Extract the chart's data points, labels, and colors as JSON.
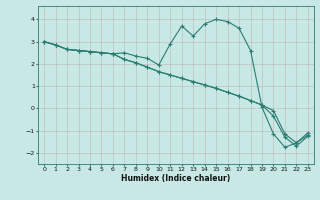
{
  "xlabel": "Humidex (Indice chaleur)",
  "xlim": [
    -0.5,
    23.5
  ],
  "ylim": [
    -2.5,
    4.6
  ],
  "xticks": [
    0,
    1,
    2,
    3,
    4,
    5,
    6,
    7,
    8,
    9,
    10,
    11,
    12,
    13,
    14,
    15,
    16,
    17,
    18,
    19,
    20,
    21,
    22,
    23
  ],
  "yticks": [
    -2,
    -1,
    0,
    1,
    2,
    3,
    4
  ],
  "bg_color": "#c8e8e5",
  "line_color": "#2a7d72",
  "line1_x": [
    0,
    1,
    2,
    3,
    4,
    5,
    6,
    7,
    8,
    9,
    10,
    11,
    12,
    13,
    14,
    15,
    16,
    17,
    18,
    19,
    20,
    21,
    22,
    23
  ],
  "line1_y": [
    3.0,
    2.85,
    2.65,
    2.6,
    2.55,
    2.5,
    2.45,
    2.5,
    2.35,
    2.25,
    1.95,
    2.9,
    3.7,
    3.25,
    3.8,
    4.0,
    3.9,
    3.6,
    2.6,
    0.05,
    -1.15,
    -1.75,
    -1.55,
    -1.2
  ],
  "line2_x": [
    0,
    1,
    2,
    3,
    4,
    5,
    6,
    7,
    8,
    9,
    10,
    11,
    12,
    13,
    14,
    15,
    16,
    17,
    18,
    19,
    20,
    21,
    22,
    23
  ],
  "line2_y": [
    3.0,
    2.85,
    2.65,
    2.6,
    2.55,
    2.5,
    2.45,
    2.2,
    2.05,
    1.85,
    1.65,
    1.5,
    1.35,
    1.2,
    1.05,
    0.9,
    0.72,
    0.55,
    0.35,
    0.15,
    -0.1,
    -1.15,
    -1.55,
    -1.1
  ],
  "line3_x": [
    0,
    1,
    2,
    3,
    4,
    5,
    6,
    7,
    8,
    9,
    10,
    11,
    12,
    13,
    14,
    15,
    16,
    17,
    18,
    19,
    20,
    21,
    22,
    23
  ],
  "line3_y": [
    3.0,
    2.85,
    2.65,
    2.6,
    2.55,
    2.5,
    2.45,
    2.2,
    2.05,
    1.85,
    1.65,
    1.5,
    1.35,
    1.2,
    1.05,
    0.9,
    0.72,
    0.55,
    0.35,
    0.15,
    -0.35,
    -1.3,
    -1.7,
    -1.25
  ]
}
